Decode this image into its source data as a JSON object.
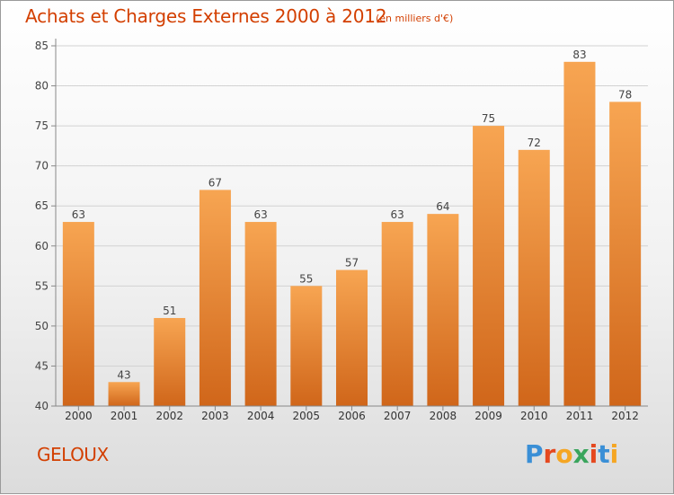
{
  "header": {
    "title": "Achats et Charges Externes 2000 à 2012",
    "unit": "(en milliers d'€)"
  },
  "footer": {
    "commune": "GELOUX",
    "brand": "Proxiti"
  },
  "colors": {
    "title": "#d33f00",
    "bar_top": "#f7a552",
    "bar_bottom": "#d0661a",
    "axis": "#888888"
  },
  "chart_data": {
    "type": "bar",
    "title": "Achats et Charges Externes 2000 à 2012",
    "subtitle": "(en milliers d'€)",
    "categories": [
      "2000",
      "2001",
      "2002",
      "2003",
      "2004",
      "2005",
      "2006",
      "2007",
      "2008",
      "2009",
      "2010",
      "2011",
      "2012"
    ],
    "values": [
      63,
      43,
      51,
      67,
      63,
      55,
      57,
      63,
      64,
      75,
      72,
      83,
      78
    ],
    "data_labels": [
      "63",
      "43",
      "51",
      "67",
      "63",
      "55",
      "57",
      "63",
      "64",
      "75",
      "72",
      "83",
      "78"
    ],
    "ylim": [
      40,
      85
    ],
    "yticks": [
      "40",
      "45",
      "50",
      "55",
      "60",
      "65",
      "70",
      "75",
      "80",
      "85"
    ],
    "grid": true,
    "legend": "none"
  }
}
